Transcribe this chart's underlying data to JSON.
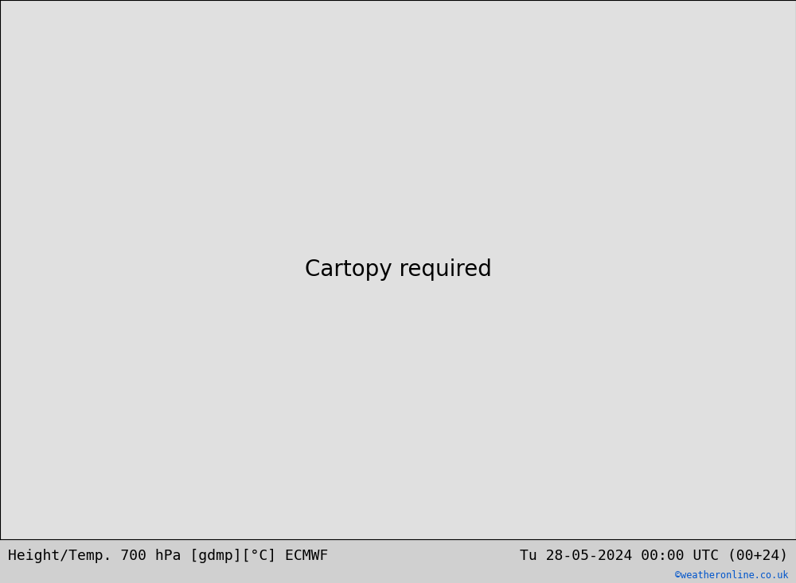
{
  "title_left": "Height/Temp. 700 hPa [gdmp][°C] ECMWF",
  "title_right": "Tu 28-05-2024 00:00 UTC (00+24)",
  "watermark": "©weatheronline.co.uk",
  "bg_color_ocean": "#e0e0e0",
  "bg_color_land": "#b8e88a",
  "border_color": "#888888",
  "contour_color_black": "#000000",
  "contour_color_pink": "#ff1493",
  "contour_color_red": "#cc2200",
  "contour_color_orange": "#ff8800",
  "bottom_bar_color": "#d0d0d0",
  "title_fontsize": 13,
  "watermark_color": "#0055cc",
  "figsize": [
    10.0,
    7.33
  ],
  "dpi": 100,
  "map_extent": [
    -22,
    65,
    -42,
    47
  ],
  "land_border_color": "#999999",
  "countries_border_color": "#aaaaaa"
}
